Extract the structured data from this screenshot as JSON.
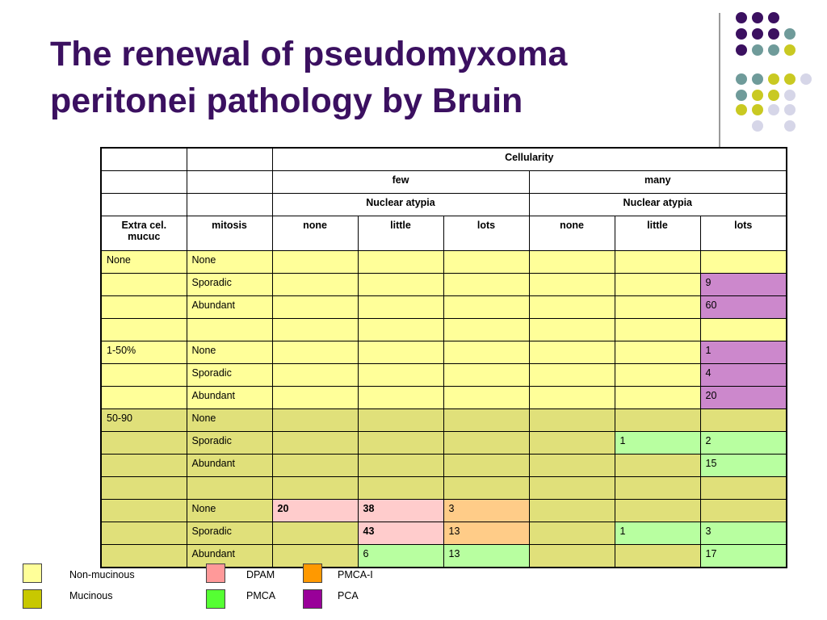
{
  "slide": {
    "title_line1": "The renewal of pseudomyxoma",
    "title_line2": "peritonei pathology by Bruin",
    "title_color": "#3b1060"
  },
  "palette": {
    "purple": "#3b1060",
    "teal": "#6f9b9a",
    "olive": "#c9c922",
    "lavender": "#d6d6e8",
    "non_mucinous": "#ffff99",
    "mucinous": "#e0e07a",
    "dpam": "#ffcccc",
    "pmca_i": "#ffcc88",
    "pmca": "#b8ffa0",
    "pca": "#cc88cc"
  },
  "table": {
    "header": {
      "cellularity": "Cellularity",
      "few": "few",
      "many": "many",
      "nuclear_atypia_few": "Nuclear atypia",
      "nuclear_atypia_many": "Nuclear atypia",
      "col_extra": "Extra cel. mucuc",
      "col_mitosis": "mitosis",
      "few_none": "none",
      "few_little": "little",
      "few_lots": "lots",
      "many_none": "none",
      "many_little": "little",
      "many_lots": "lots"
    },
    "rows": [
      {
        "extra": "None",
        "mitosis": "None",
        "c1": "",
        "c2": "",
        "c3": "",
        "c4": "",
        "c5": "",
        "c6": "",
        "bg": "non",
        "c6bg": ""
      },
      {
        "extra": "",
        "mitosis": "Sporadic",
        "c1": "",
        "c2": "",
        "c3": "",
        "c4": "",
        "c5": "",
        "c6": "9",
        "bg": "non",
        "c6bg": "pca"
      },
      {
        "extra": "",
        "mitosis": "Abundant",
        "c1": "",
        "c2": "",
        "c3": "",
        "c4": "",
        "c5": "",
        "c6": "60",
        "bg": "non",
        "c6bg": "pca"
      },
      {
        "extra": "",
        "mitosis": "",
        "c1": "",
        "c2": "",
        "c3": "",
        "c4": "",
        "c5": "",
        "c6": "",
        "bg": "non",
        "c6bg": ""
      },
      {
        "extra": "1-50%",
        "mitosis": "None",
        "c1": "",
        "c2": "",
        "c3": "",
        "c4": "",
        "c5": "",
        "c6": "1",
        "bg": "non",
        "c6bg": "pca"
      },
      {
        "extra": "",
        "mitosis": "Sporadic",
        "c1": "",
        "c2": "",
        "c3": "",
        "c4": "",
        "c5": "",
        "c6": "4",
        "bg": "non",
        "c6bg": "pca"
      },
      {
        "extra": "",
        "mitosis": "Abundant",
        "c1": "",
        "c2": "",
        "c3": "",
        "c4": "",
        "c5": "",
        "c6": "20",
        "bg": "non",
        "c6bg": "pca"
      },
      {
        "extra": "50-90",
        "mitosis": "None",
        "c1": "",
        "c2": "",
        "c3": "",
        "c4": "",
        "c5": "",
        "c6": "",
        "bg": "muc",
        "c6bg": ""
      },
      {
        "extra": "",
        "mitosis": "Sporadic",
        "c1": "",
        "c2": "",
        "c3": "",
        "c4": "",
        "c5": "1",
        "c6": "2",
        "bg": "muc",
        "c5bg": "pmca",
        "c6bg": "pmca"
      },
      {
        "extra": "",
        "mitosis": "Abundant",
        "c1": "",
        "c2": "",
        "c3": "",
        "c4": "",
        "c5": "",
        "c6": "15",
        "bg": "muc",
        "c6bg": "pmca"
      },
      {
        "extra": "",
        "mitosis": "",
        "c1": "",
        "c2": "",
        "c3": "",
        "c4": "",
        "c5": "",
        "c6": "",
        "bg": "muc",
        "c6bg": ""
      },
      {
        "extra": "",
        "mitosis": "None",
        "c1": "20",
        "c2": "38",
        "c3": "3",
        "c4": "",
        "c5": "",
        "c6": "",
        "bg": "muc",
        "c1bg": "dpam",
        "c2bg": "dpam",
        "c3bg": "pmca_i",
        "bold": [
          1,
          2
        ]
      },
      {
        "extra": "",
        "mitosis": "Sporadic",
        "c1": "",
        "c2": "43",
        "c3": "13",
        "c4": "",
        "c5": "1",
        "c6": "3",
        "bg": "muc",
        "c2bg": "dpam",
        "c3bg": "pmca_i",
        "c5bg": "pmca",
        "c6bg": "pmca",
        "bold": [
          2
        ]
      },
      {
        "extra": "",
        "mitosis": "Abundant",
        "c1": "",
        "c2": "6",
        "c3": "13",
        "c4": "",
        "c5": "",
        "c6": "17",
        "bg": "muc",
        "c2bg": "pmca",
        "c3bg": "pmca",
        "c6bg": "pmca"
      }
    ]
  },
  "legend": {
    "non_mucinous": "Non-mucinous",
    "mucinous": "Mucinous",
    "dpam": "DPAM",
    "pmca": "PMCA",
    "pmca_i": "PMCA-I",
    "pca": "PCA"
  }
}
